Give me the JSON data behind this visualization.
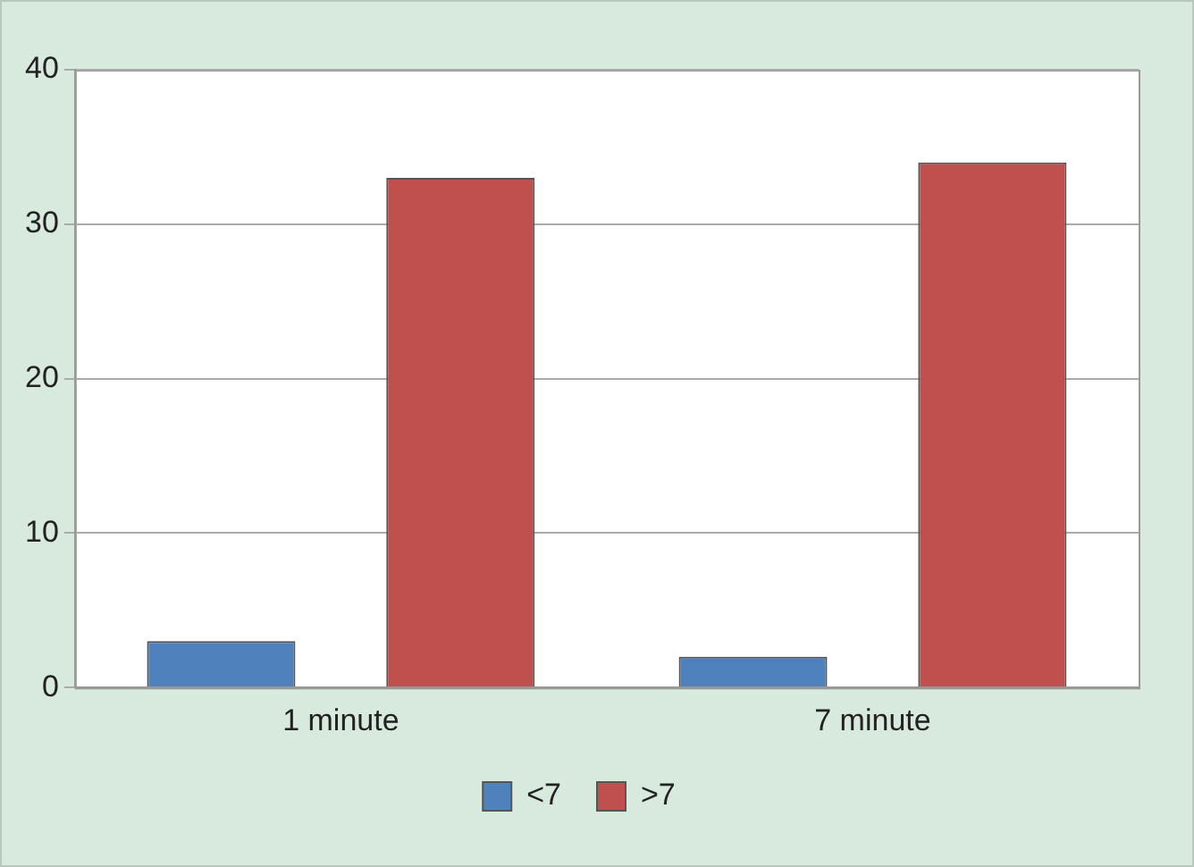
{
  "chart_data": {
    "type": "bar",
    "categories": [
      "1 minute",
      "7 minute"
    ],
    "series": [
      {
        "name": "<7",
        "color": "#4f81bd",
        "values": [
          3,
          2
        ]
      },
      {
        "name": ">7",
        "color": "#c0504d",
        "values": [
          33,
          34
        ]
      }
    ],
    "ylim": [
      0,
      40
    ],
    "yticks": [
      0,
      10,
      20,
      30,
      40
    ],
    "grid": "y",
    "legend": "bottom"
  }
}
